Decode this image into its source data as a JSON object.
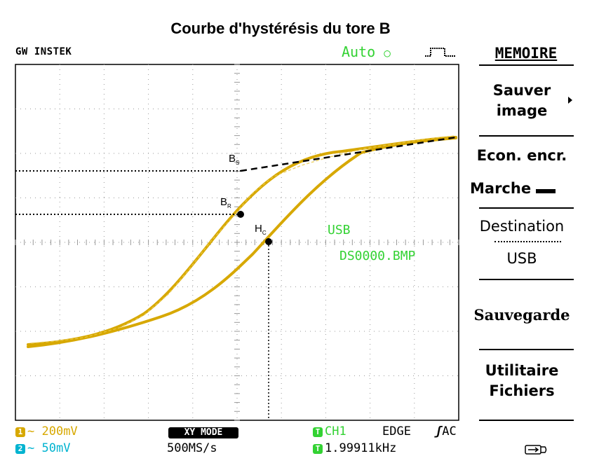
{
  "caption": "Courbe d'hystérésis du tore B",
  "header": {
    "brand": "GW INSTEK",
    "trigger_mode": "Auto",
    "trigger_icon": "pulse-icon"
  },
  "menu": {
    "title": "MEMOIRE",
    "items": [
      {
        "label_line1": "Sauver",
        "label_line2": "image",
        "has_arrow": true
      },
      {
        "label": "Econ. encr."
      },
      {
        "label": "Marche"
      },
      {
        "label": "Destination"
      },
      {
        "label": "USB"
      },
      {
        "label": "Sauvegarde"
      },
      {
        "label_line1": "Utilitaire",
        "label_line2": "Fichiers"
      }
    ]
  },
  "screen_overlay": {
    "storage": "USB",
    "file": "DS0000.BMP"
  },
  "annotations": {
    "bs": "B",
    "bs_sub": "S",
    "br": "B",
    "br_sub": "R",
    "hc": "H",
    "hc_sub": "C"
  },
  "status": {
    "ch1_scale": "200mV",
    "ch2_scale": "50mV",
    "mode": "XY MODE",
    "sample_rate": "500MS/s",
    "trig_source": "CH1",
    "trig_type": "EDGE",
    "trig_coupling": "AC",
    "frequency": "1.99911kHz"
  },
  "colors": {
    "trace": "#d7a800",
    "ch1": "#d7a800",
    "ch2": "#00b3d0",
    "trigger": "#33d233",
    "grid": "#9a9a9a"
  }
}
